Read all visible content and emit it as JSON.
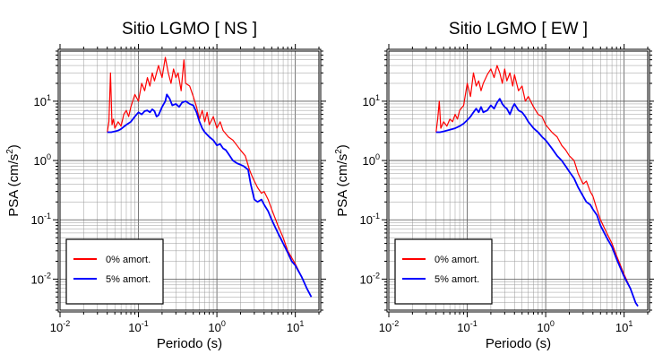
{
  "chart_data": [
    {
      "type": "line",
      "title": "Sitio LGMO [ NS ]",
      "xlabel": "Periodo (s)",
      "ylabel_main": "PSA (cm/s",
      "ylabel_sup": "2",
      "ylabel_close": ")",
      "xscale": "log",
      "yscale": "log",
      "xlim": [
        0.01,
        20
      ],
      "ylim": [
        0.003,
        70
      ],
      "grid": true,
      "legend_placement": "bottom-left",
      "x_ticks": [
        {
          "value": 0.01,
          "base": "10",
          "exp": "-2"
        },
        {
          "value": 0.1,
          "base": "10",
          "exp": "-1"
        },
        {
          "value": 1,
          "base": "10",
          "exp": "0"
        },
        {
          "value": 10,
          "base": "10",
          "exp": "1"
        }
      ],
      "y_ticks": [
        {
          "value": 0.01,
          "base": "10",
          "exp": "-2"
        },
        {
          "value": 0.1,
          "base": "10",
          "exp": "-1"
        },
        {
          "value": 1,
          "base": "10",
          "exp": "0"
        },
        {
          "value": 10,
          "base": "10",
          "exp": "1"
        }
      ],
      "series": [
        {
          "name": "0% amort.",
          "color": "#ff0000",
          "points": [
            [
              0.04,
              3.0
            ],
            [
              0.042,
              4.5
            ],
            [
              0.044,
              30
            ],
            [
              0.046,
              4.0
            ],
            [
              0.048,
              5.0
            ],
            [
              0.05,
              3.5
            ],
            [
              0.055,
              4.5
            ],
            [
              0.06,
              3.8
            ],
            [
              0.065,
              6.0
            ],
            [
              0.07,
              7.0
            ],
            [
              0.075,
              5.5
            ],
            [
              0.08,
              8.0
            ],
            [
              0.09,
              13
            ],
            [
              0.1,
              10
            ],
            [
              0.11,
              20
            ],
            [
              0.12,
              15
            ],
            [
              0.13,
              25
            ],
            [
              0.14,
              18
            ],
            [
              0.15,
              30
            ],
            [
              0.16,
              22
            ],
            [
              0.18,
              40
            ],
            [
              0.2,
              25
            ],
            [
              0.22,
              55
            ],
            [
              0.24,
              30
            ],
            [
              0.26,
              20
            ],
            [
              0.28,
              35
            ],
            [
              0.3,
              25
            ],
            [
              0.32,
              30
            ],
            [
              0.35,
              15
            ],
            [
              0.38,
              50
            ],
            [
              0.4,
              20
            ],
            [
              0.45,
              18
            ],
            [
              0.5,
              12
            ],
            [
              0.55,
              8
            ],
            [
              0.6,
              5
            ],
            [
              0.65,
              7
            ],
            [
              0.7,
              4.5
            ],
            [
              0.75,
              6.5
            ],
            [
              0.8,
              4.0
            ],
            [
              0.9,
              5.5
            ],
            [
              1.0,
              3.5
            ],
            [
              1.1,
              4.5
            ],
            [
              1.2,
              3.2
            ],
            [
              1.4,
              2.5
            ],
            [
              1.6,
              2.2
            ],
            [
              1.8,
              1.8
            ],
            [
              2.0,
              1.5
            ],
            [
              2.3,
              1.2
            ],
            [
              2.6,
              0.7
            ],
            [
              2.8,
              0.55
            ],
            [
              3.0,
              0.45
            ],
            [
              3.3,
              0.35
            ],
            [
              3.7,
              0.28
            ],
            [
              4.0,
              0.3
            ],
            [
              4.5,
              0.22
            ],
            [
              5,
              0.15
            ],
            [
              6,
              0.08
            ],
            [
              7,
              0.05
            ],
            [
              8,
              0.03
            ],
            [
              10,
              0.018
            ],
            [
              12,
              0.011
            ],
            [
              14,
              0.007
            ],
            [
              16,
              0.005
            ]
          ]
        },
        {
          "name": "5% amort.",
          "color": "#0000ff",
          "points": [
            [
              0.04,
              3.0
            ],
            [
              0.045,
              3.0
            ],
            [
              0.05,
              3.1
            ],
            [
              0.055,
              3.2
            ],
            [
              0.06,
              3.4
            ],
            [
              0.065,
              3.7
            ],
            [
              0.07,
              4.0
            ],
            [
              0.08,
              4.5
            ],
            [
              0.09,
              5.5
            ],
            [
              0.1,
              6.5
            ],
            [
              0.11,
              6.0
            ],
            [
              0.12,
              6.8
            ],
            [
              0.13,
              7.0
            ],
            [
              0.14,
              6.5
            ],
            [
              0.15,
              7.3
            ],
            [
              0.16,
              6.8
            ],
            [
              0.17,
              5.5
            ],
            [
              0.18,
              5.8
            ],
            [
              0.2,
              8.0
            ],
            [
              0.22,
              10
            ],
            [
              0.23,
              13
            ],
            [
              0.25,
              11
            ],
            [
              0.27,
              8.5
            ],
            [
              0.3,
              9.0
            ],
            [
              0.33,
              8.0
            ],
            [
              0.36,
              9.5
            ],
            [
              0.4,
              10
            ],
            [
              0.45,
              9.0
            ],
            [
              0.5,
              8.5
            ],
            [
              0.55,
              6.5
            ],
            [
              0.6,
              4.5
            ],
            [
              0.65,
              3.5
            ],
            [
              0.7,
              3.0
            ],
            [
              0.8,
              2.5
            ],
            [
              0.9,
              2.2
            ],
            [
              1.0,
              1.8
            ],
            [
              1.1,
              1.9
            ],
            [
              1.2,
              1.6
            ],
            [
              1.3,
              1.5
            ],
            [
              1.4,
              1.3
            ],
            [
              1.6,
              1.0
            ],
            [
              1.8,
              0.9
            ],
            [
              2.0,
              0.85
            ],
            [
              2.2,
              0.8
            ],
            [
              2.5,
              0.7
            ],
            [
              2.7,
              0.4
            ],
            [
              3.0,
              0.22
            ],
            [
              3.3,
              0.2
            ],
            [
              3.7,
              0.22
            ],
            [
              4.0,
              0.18
            ],
            [
              4.5,
              0.14
            ],
            [
              5,
              0.1
            ],
            [
              6,
              0.06
            ],
            [
              7,
              0.04
            ],
            [
              8,
              0.028
            ],
            [
              9,
              0.02
            ],
            [
              10,
              0.017
            ],
            [
              12,
              0.011
            ],
            [
              14,
              0.007
            ],
            [
              16,
              0.005
            ]
          ]
        }
      ]
    },
    {
      "type": "line",
      "title": "Sitio LGMO [ EW ]",
      "xlabel": "Periodo (s)",
      "ylabel_main": "PSA (cm/s",
      "ylabel_sup": "2",
      "ylabel_close": ")",
      "xscale": "log",
      "yscale": "log",
      "xlim": [
        0.01,
        20
      ],
      "ylim": [
        0.003,
        70
      ],
      "grid": true,
      "legend_placement": "bottom-left",
      "x_ticks": [
        {
          "value": 0.01,
          "base": "10",
          "exp": "-2"
        },
        {
          "value": 0.1,
          "base": "10",
          "exp": "-1"
        },
        {
          "value": 1,
          "base": "10",
          "exp": "0"
        },
        {
          "value": 10,
          "base": "10",
          "exp": "1"
        }
      ],
      "y_ticks": [
        {
          "value": 0.01,
          "base": "10",
          "exp": "-2"
        },
        {
          "value": 0.1,
          "base": "10",
          "exp": "-1"
        },
        {
          "value": 1,
          "base": "10",
          "exp": "0"
        },
        {
          "value": 10,
          "base": "10",
          "exp": "1"
        }
      ],
      "series": [
        {
          "name": "0% amort.",
          "color": "#ff0000",
          "points": [
            [
              0.04,
              3.0
            ],
            [
              0.042,
              5.0
            ],
            [
              0.044,
              10
            ],
            [
              0.046,
              3.5
            ],
            [
              0.05,
              4.5
            ],
            [
              0.055,
              3.8
            ],
            [
              0.06,
              5.0
            ],
            [
              0.065,
              4.5
            ],
            [
              0.07,
              6.0
            ],
            [
              0.075,
              5.0
            ],
            [
              0.08,
              7.0
            ],
            [
              0.09,
              8.5
            ],
            [
              0.1,
              20
            ],
            [
              0.11,
              12
            ],
            [
              0.12,
              30
            ],
            [
              0.13,
              18
            ],
            [
              0.14,
              22
            ],
            [
              0.15,
              15
            ],
            [
              0.16,
              20
            ],
            [
              0.18,
              28
            ],
            [
              0.2,
              35
            ],
            [
              0.22,
              25
            ],
            [
              0.24,
              40
            ],
            [
              0.26,
              30
            ],
            [
              0.28,
              20
            ],
            [
              0.3,
              35
            ],
            [
              0.32,
              22
            ],
            [
              0.35,
              30
            ],
            [
              0.38,
              18
            ],
            [
              0.4,
              28
            ],
            [
              0.45,
              15
            ],
            [
              0.5,
              18
            ],
            [
              0.55,
              10
            ],
            [
              0.6,
              12
            ],
            [
              0.7,
              8
            ],
            [
              0.8,
              6
            ],
            [
              0.9,
              5.5
            ],
            [
              1.0,
              4
            ],
            [
              1.2,
              3
            ],
            [
              1.4,
              2.5
            ],
            [
              1.6,
              1.8
            ],
            [
              1.8,
              1.5
            ],
            [
              2.0,
              1.2
            ],
            [
              2.3,
              1.0
            ],
            [
              2.6,
              0.6
            ],
            [
              3.0,
              0.4
            ],
            [
              3.3,
              0.45
            ],
            [
              3.7,
              0.3
            ],
            [
              4.0,
              0.25
            ],
            [
              4.5,
              0.15
            ],
            [
              5,
              0.1
            ],
            [
              6,
              0.06
            ],
            [
              7,
              0.04
            ],
            [
              8,
              0.025
            ],
            [
              10,
              0.012
            ],
            [
              12,
              0.007
            ],
            [
              14,
              0.004
            ],
            [
              15,
              0.0035
            ]
          ]
        },
        {
          "name": "5% amort.",
          "color": "#0000ff",
          "points": [
            [
              0.04,
              3.0
            ],
            [
              0.045,
              3.0
            ],
            [
              0.05,
              3.1
            ],
            [
              0.055,
              3.2
            ],
            [
              0.06,
              3.3
            ],
            [
              0.07,
              3.5
            ],
            [
              0.08,
              3.8
            ],
            [
              0.09,
              4.2
            ],
            [
              0.1,
              4.8
            ],
            [
              0.11,
              5.5
            ],
            [
              0.12,
              6.5
            ],
            [
              0.13,
              7.5
            ],
            [
              0.14,
              6.5
            ],
            [
              0.15,
              8.0
            ],
            [
              0.16,
              6.5
            ],
            [
              0.18,
              7.0
            ],
            [
              0.2,
              8.5
            ],
            [
              0.22,
              7.5
            ],
            [
              0.24,
              9.5
            ],
            [
              0.26,
              11
            ],
            [
              0.28,
              9.0
            ],
            [
              0.3,
              8.0
            ],
            [
              0.32,
              7.5
            ],
            [
              0.35,
              6.0
            ],
            [
              0.38,
              8.0
            ],
            [
              0.4,
              9.0
            ],
            [
              0.45,
              7.0
            ],
            [
              0.5,
              6.5
            ],
            [
              0.55,
              5.5
            ],
            [
              0.6,
              4.5
            ],
            [
              0.7,
              3.5
            ],
            [
              0.8,
              3.0
            ],
            [
              0.9,
              2.5
            ],
            [
              1.0,
              2.2
            ],
            [
              1.2,
              1.6
            ],
            [
              1.4,
              1.2
            ],
            [
              1.6,
              1.0
            ],
            [
              1.8,
              0.8
            ],
            [
              2.0,
              0.65
            ],
            [
              2.3,
              0.5
            ],
            [
              2.6,
              0.35
            ],
            [
              3.0,
              0.25
            ],
            [
              3.3,
              0.2
            ],
            [
              3.7,
              0.18
            ],
            [
              4.0,
              0.15
            ],
            [
              4.5,
              0.12
            ],
            [
              5,
              0.08
            ],
            [
              6,
              0.05
            ],
            [
              7,
              0.035
            ],
            [
              8,
              0.022
            ],
            [
              10,
              0.011
            ],
            [
              12,
              0.007
            ],
            [
              14,
              0.004
            ],
            [
              15,
              0.0035
            ]
          ]
        }
      ]
    }
  ]
}
